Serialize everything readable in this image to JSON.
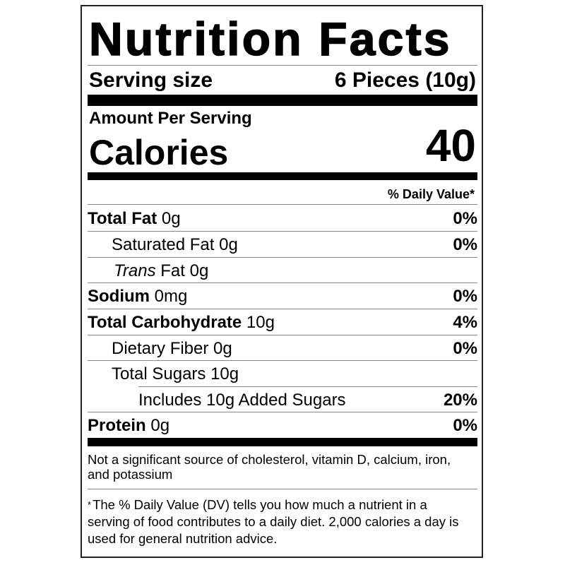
{
  "title": "Nutrition Facts",
  "serving": {
    "label": "Serving size",
    "value": "6 Pieces (10g)"
  },
  "amount_per_serving": "Amount Per Serving",
  "calories": {
    "label": "Calories",
    "value": "40"
  },
  "daily_value_header": "% Daily Value*",
  "nutrients": [
    {
      "name": "Total Fat",
      "amount": "0g",
      "dv": "0%"
    },
    {
      "name": "Saturated Fat",
      "amount": "0g",
      "dv": "0%"
    },
    {
      "name_italic": "Trans",
      "name": "Fat",
      "amount": "0g",
      "dv": ""
    },
    {
      "name": "Sodium",
      "amount": "0mg",
      "dv": "0%"
    },
    {
      "name": "Total Carbohydrate",
      "amount": "10g",
      "dv": "4%"
    },
    {
      "name": "Dietary Fiber",
      "amount": "0g",
      "dv": "0%"
    },
    {
      "name": "Total Sugars",
      "amount": "10g",
      "dv": ""
    },
    {
      "name": "Includes 10g Added Sugars",
      "amount": "",
      "dv": "20%"
    },
    {
      "name": "Protein",
      "amount": "0g",
      "dv": "0%"
    }
  ],
  "not_significant": "Not a significant source of cholesterol, vitamin D, calcium, iron, and potassium",
  "footnote": {
    "star": "*",
    "text": "The % Daily Value (DV) tells you how much a nutrient in a serving of food contributes to a daily diet. 2,000 calories a day is used for general nutrition advice."
  }
}
